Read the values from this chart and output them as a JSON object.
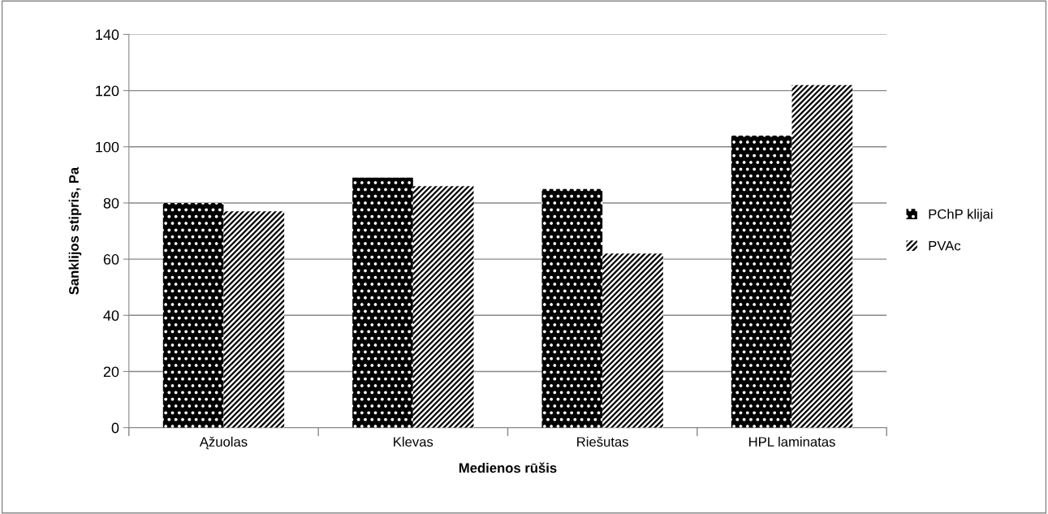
{
  "chart_data": {
    "type": "bar",
    "xlabel": "Medienos rūšis",
    "ylabel": "Sanklijos stipris, Pa",
    "categories": [
      "Ąžuolas",
      "Klevas",
      "Riešutas",
      "HPL laminatas"
    ],
    "series": [
      {
        "name": "PChP klijai",
        "color": "#000000",
        "values": [
          80,
          89,
          85,
          104
        ]
      },
      {
        "name": "PVAc",
        "color": "#ffffff",
        "values": [
          77,
          86,
          62,
          122
        ]
      }
    ],
    "ylim": [
      0,
      140
    ],
    "yticks": [
      0,
      20,
      40,
      60,
      80,
      100,
      120,
      140
    ],
    "grid": "y",
    "legend": "right"
  }
}
